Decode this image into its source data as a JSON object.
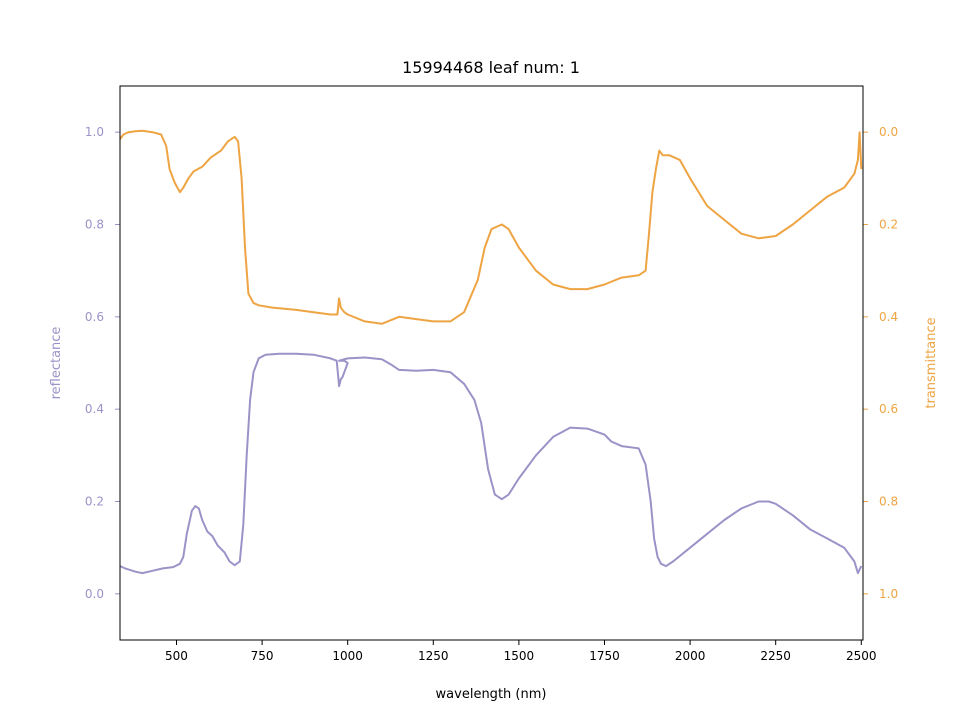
{
  "chart_data": {
    "type": "line",
    "title": "15994468 leaf num: 1",
    "xlabel": "wavelength (nm)",
    "ylabel_left": "reflectance",
    "ylabel_right": "transmittance",
    "xlim": [
      335,
      2505
    ],
    "ylim_left": [
      -0.1,
      1.1
    ],
    "ylim_right": [
      1.1,
      -0.1
    ],
    "right_axis_inverted": true,
    "grid": false,
    "x_ticks": [
      500,
      750,
      1000,
      1250,
      1500,
      1750,
      2000,
      2250,
      2500
    ],
    "y_ticks_left": [
      0.0,
      0.2,
      0.4,
      0.6,
      0.8,
      1.0
    ],
    "y_ticks_right": [
      0.0,
      0.2,
      0.4,
      0.6,
      0.8,
      1.0
    ],
    "tick_format": {
      "y": "0.0"
    },
    "colors": {
      "reflectance": "#9b93c8",
      "transmittance": "#eea443"
    },
    "series": [
      {
        "key": "reflectance",
        "axis": "left",
        "points": [
          [
            335,
            0.06
          ],
          [
            350,
            0.055
          ],
          [
            380,
            0.048
          ],
          [
            400,
            0.045
          ],
          [
            430,
            0.05
          ],
          [
            460,
            0.055
          ],
          [
            490,
            0.058
          ],
          [
            510,
            0.065
          ],
          [
            520,
            0.08
          ],
          [
            530,
            0.13
          ],
          [
            545,
            0.18
          ],
          [
            555,
            0.19
          ],
          [
            565,
            0.185
          ],
          [
            575,
            0.16
          ],
          [
            590,
            0.135
          ],
          [
            605,
            0.125
          ],
          [
            620,
            0.105
          ],
          [
            640,
            0.09
          ],
          [
            655,
            0.07
          ],
          [
            670,
            0.062
          ],
          [
            685,
            0.07
          ],
          [
            695,
            0.15
          ],
          [
            705,
            0.3
          ],
          [
            715,
            0.42
          ],
          [
            725,
            0.48
          ],
          [
            740,
            0.51
          ],
          [
            760,
            0.518
          ],
          [
            800,
            0.52
          ],
          [
            850,
            0.52
          ],
          [
            900,
            0.518
          ],
          [
            950,
            0.51
          ],
          [
            968,
            0.505
          ],
          [
            975,
            0.45
          ],
          [
            980,
            0.465
          ],
          [
            985,
            0.47
          ],
          [
            990,
            0.48
          ],
          [
            995,
            0.49
          ],
          [
            1000,
            0.5
          ],
          [
            990,
            0.505
          ],
          [
            975,
            0.505
          ],
          [
            1000,
            0.51
          ],
          [
            1050,
            0.512
          ],
          [
            1100,
            0.508
          ],
          [
            1130,
            0.495
          ],
          [
            1150,
            0.485
          ],
          [
            1200,
            0.483
          ],
          [
            1250,
            0.485
          ],
          [
            1300,
            0.48
          ],
          [
            1340,
            0.455
          ],
          [
            1370,
            0.42
          ],
          [
            1390,
            0.37
          ],
          [
            1410,
            0.27
          ],
          [
            1430,
            0.215
          ],
          [
            1450,
            0.205
          ],
          [
            1470,
            0.215
          ],
          [
            1500,
            0.25
          ],
          [
            1550,
            0.3
          ],
          [
            1600,
            0.34
          ],
          [
            1650,
            0.36
          ],
          [
            1700,
            0.358
          ],
          [
            1750,
            0.345
          ],
          [
            1770,
            0.33
          ],
          [
            1800,
            0.32
          ],
          [
            1850,
            0.315
          ],
          [
            1870,
            0.28
          ],
          [
            1885,
            0.2
          ],
          [
            1895,
            0.12
          ],
          [
            1905,
            0.08
          ],
          [
            1915,
            0.065
          ],
          [
            1930,
            0.06
          ],
          [
            1950,
            0.07
          ],
          [
            2000,
            0.1
          ],
          [
            2050,
            0.13
          ],
          [
            2100,
            0.16
          ],
          [
            2150,
            0.185
          ],
          [
            2200,
            0.2
          ],
          [
            2230,
            0.2
          ],
          [
            2250,
            0.195
          ],
          [
            2300,
            0.17
          ],
          [
            2350,
            0.14
          ],
          [
            2400,
            0.12
          ],
          [
            2450,
            0.1
          ],
          [
            2480,
            0.07
          ],
          [
            2490,
            0.045
          ],
          [
            2500,
            0.06
          ]
        ]
      },
      {
        "key": "transmittance",
        "axis": "right",
        "points": [
          [
            335,
            0.015
          ],
          [
            345,
            0.005
          ],
          [
            360,
            0.0
          ],
          [
            380,
            -0.002
          ],
          [
            400,
            -0.003
          ],
          [
            430,
            0.0
          ],
          [
            455,
            0.005
          ],
          [
            470,
            0.03
          ],
          [
            480,
            0.08
          ],
          [
            495,
            0.11
          ],
          [
            510,
            0.13
          ],
          [
            520,
            0.12
          ],
          [
            535,
            0.1
          ],
          [
            550,
            0.085
          ],
          [
            575,
            0.075
          ],
          [
            600,
            0.055
          ],
          [
            630,
            0.04
          ],
          [
            650,
            0.02
          ],
          [
            670,
            0.01
          ],
          [
            680,
            0.02
          ],
          [
            690,
            0.1
          ],
          [
            700,
            0.25
          ],
          [
            710,
            0.35
          ],
          [
            725,
            0.37
          ],
          [
            740,
            0.375
          ],
          [
            780,
            0.38
          ],
          [
            850,
            0.385
          ],
          [
            900,
            0.39
          ],
          [
            950,
            0.395
          ],
          [
            970,
            0.395
          ],
          [
            975,
            0.36
          ],
          [
            980,
            0.38
          ],
          [
            990,
            0.39
          ],
          [
            1000,
            0.395
          ],
          [
            1050,
            0.41
          ],
          [
            1100,
            0.415
          ],
          [
            1150,
            0.4
          ],
          [
            1200,
            0.405
          ],
          [
            1250,
            0.41
          ],
          [
            1300,
            0.41
          ],
          [
            1340,
            0.39
          ],
          [
            1380,
            0.32
          ],
          [
            1400,
            0.25
          ],
          [
            1420,
            0.21
          ],
          [
            1450,
            0.2
          ],
          [
            1470,
            0.21
          ],
          [
            1500,
            0.25
          ],
          [
            1550,
            0.3
          ],
          [
            1600,
            0.33
          ],
          [
            1650,
            0.34
          ],
          [
            1700,
            0.34
          ],
          [
            1750,
            0.33
          ],
          [
            1800,
            0.315
          ],
          [
            1850,
            0.31
          ],
          [
            1870,
            0.3
          ],
          [
            1880,
            0.22
          ],
          [
            1890,
            0.13
          ],
          [
            1900,
            0.08
          ],
          [
            1910,
            0.04
          ],
          [
            1920,
            0.05
          ],
          [
            1940,
            0.05
          ],
          [
            1970,
            0.06
          ],
          [
            2000,
            0.1
          ],
          [
            2050,
            0.16
          ],
          [
            2100,
            0.19
          ],
          [
            2150,
            0.22
          ],
          [
            2200,
            0.23
          ],
          [
            2250,
            0.225
          ],
          [
            2300,
            0.2
          ],
          [
            2350,
            0.17
          ],
          [
            2400,
            0.14
          ],
          [
            2450,
            0.12
          ],
          [
            2480,
            0.09
          ],
          [
            2490,
            0.06
          ],
          [
            2495,
            0.0
          ],
          [
            2500,
            0.08
          ]
        ]
      }
    ]
  }
}
